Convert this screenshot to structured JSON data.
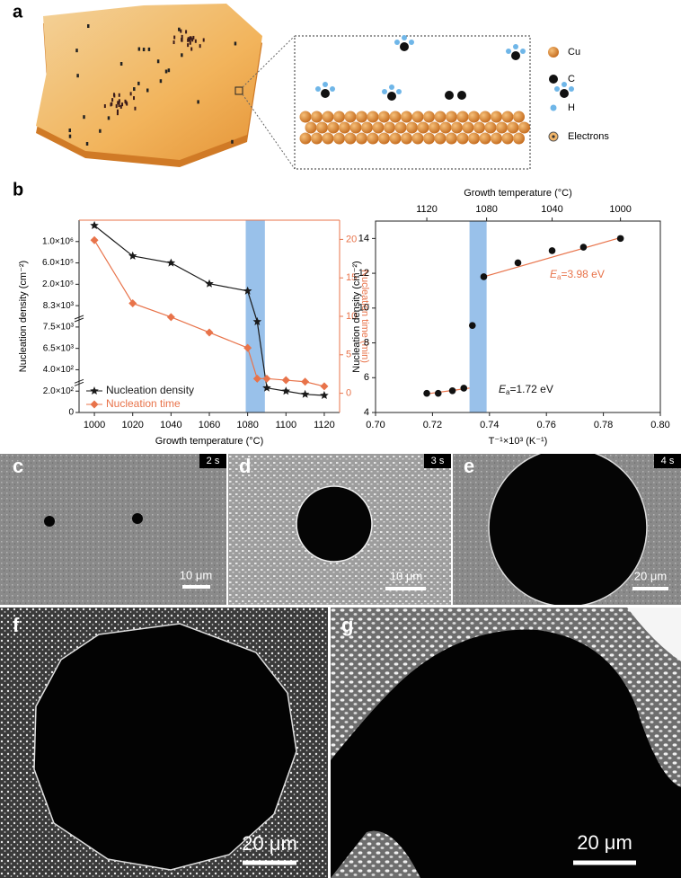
{
  "panels": [
    "a",
    "b",
    "f",
    "g"
  ],
  "schematic_legend": [
    "Cu",
    "C",
    "H",
    "Electrons"
  ],
  "micrographs": [
    {
      "label": "c",
      "time": "2 s",
      "scale_bar": "10 μm"
    },
    {
      "label": "d",
      "time": "3 s",
      "scale_bar": "10 μm"
    },
    {
      "label": "e",
      "time": "4 s",
      "scale_bar": "20 μm"
    },
    {
      "scale_bar": "20 μm"
    },
    {
      "scale_bar": "20 μm"
    }
  ],
  "chart_data": [
    {
      "type": "line",
      "xlabel": "Growth temperature (°C)",
      "ylabel": "Nucleation density (cm⁻²)",
      "y2label": "Nucleation time (min)",
      "x": [
        1000,
        1020,
        1040,
        1060,
        1080,
        1085,
        1090,
        1100,
        1110,
        1120
      ],
      "xlim": [
        992,
        1128
      ],
      "xticks": [
        1000,
        1020,
        1040,
        1060,
        1080,
        1100,
        1120
      ],
      "yscale": "broken",
      "ylim": [
        0,
        1400000
      ],
      "yticks": [
        0,
        {
          "value": 200,
          "label": "2.0×10²"
        },
        {
          "value": 400,
          "label": "4.0×10²"
        },
        {
          "value": 6500,
          "label": "6.5×10³"
        },
        {
          "value": 7500,
          "label": "7.5×10³"
        },
        {
          "value": 8300,
          "label": "8.3×10³"
        },
        {
          "value": 200000,
          "label": "2.0×10⁵"
        },
        {
          "value": 600000,
          "label": "6.0×10⁵"
        },
        {
          "value": 1000000,
          "label": "1.0×10⁶"
        }
      ],
      "y2lim": [
        -2.5,
        22.5
      ],
      "y2ticks": [
        0,
        5,
        10,
        15,
        20
      ],
      "y2color": "#e8734a",
      "shaded_range": [
        1079,
        1089
      ],
      "shade_color": "#7fb2e5",
      "legend": "lower left",
      "series": [
        {
          "name": "Nucleation density",
          "color": "#1a1a1a",
          "marker": "star",
          "values": [
            1300000,
            730000,
            600000,
            210000,
            140000,
            7700,
            230,
            200,
            170,
            160
          ]
        },
        {
          "name": "Nucleation time",
          "color": "#e8734a",
          "marker": "diamond",
          "axis": "y2",
          "values": [
            19.9,
            11.7,
            9.9,
            7.9,
            5.9,
            1.9,
            1.9,
            1.7,
            1.5,
            0.9
          ]
        }
      ]
    },
    {
      "type": "scatter",
      "xlabel": "T⁻¹×10³ (K⁻¹)",
      "ylabel": "Nucleation density (cm⁻²)",
      "x2label": "Growth temperature (°C)",
      "x": [
        0.718,
        0.722,
        0.727,
        0.731,
        0.734,
        0.738,
        0.75,
        0.762,
        0.773,
        0.786
      ],
      "values": [
        5.1,
        5.1,
        5.25,
        5.4,
        9.0,
        11.8,
        12.6,
        13.3,
        13.5,
        14.0
      ],
      "color": "#111111",
      "xlim": [
        0.7,
        0.8
      ],
      "xticks": [
        {
          "value": 0.7,
          "label": "0.70"
        },
        0.72,
        0.74,
        0.76,
        0.78,
        {
          "value": 0.8,
          "label": "0.80"
        }
      ],
      "x2ticks": [
        {
          "value": 0.718,
          "label": "1120"
        },
        {
          "value": 0.739,
          "label": "1080"
        },
        {
          "value": 0.762,
          "label": "1040"
        },
        {
          "value": 0.786,
          "label": "1000"
        }
      ],
      "ylim": [
        4,
        15
      ],
      "yticks": [
        4,
        6,
        8,
        10,
        12,
        14
      ],
      "shaded_range": [
        0.733,
        0.739
      ],
      "shade_color": "#7fb2e5",
      "fits": [
        {
          "color": "#e8734a",
          "x": [
            0.738,
            0.786
          ],
          "y": [
            11.8,
            14.05
          ]
        },
        {
          "color": "#e8734a",
          "x": [
            0.717,
            0.733
          ],
          "y": [
            5.05,
            5.4
          ]
        }
      ],
      "annotations": [
        {
          "symbol": "E",
          "subscript": "a",
          "text": "=3.98 eV",
          "color": "#e8734a"
        },
        {
          "symbol": "E",
          "subscript": "a",
          "text": "=1.72 eV",
          "color": "#111111"
        }
      ]
    }
  ]
}
